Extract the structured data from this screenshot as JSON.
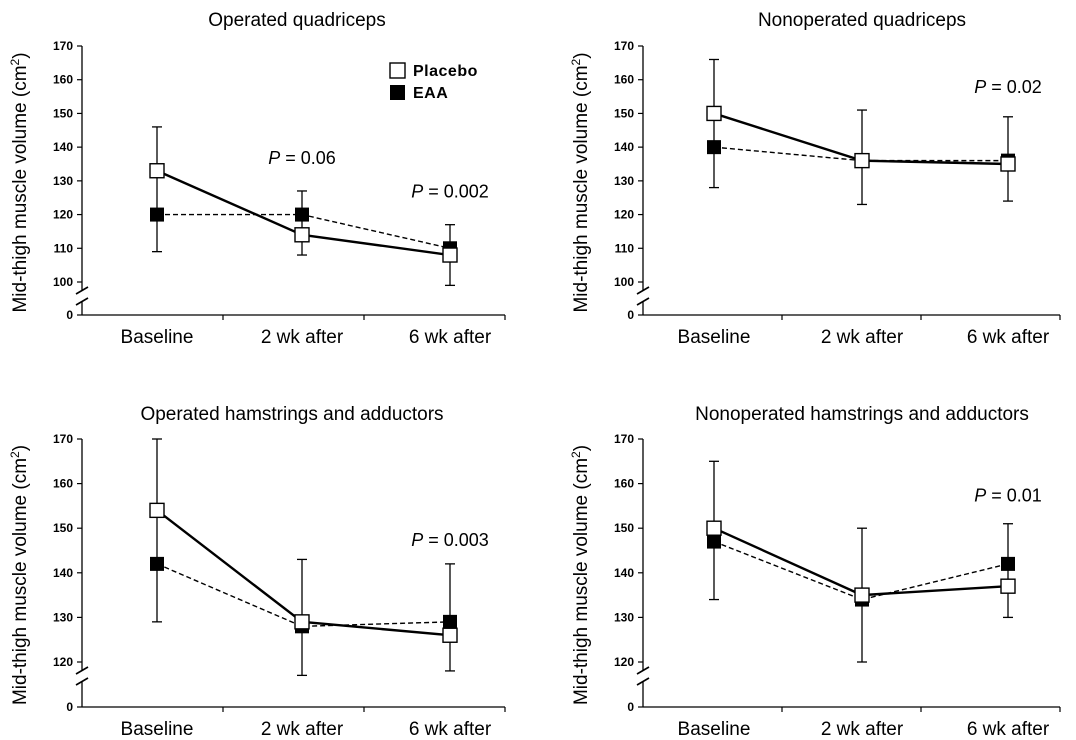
{
  "chart_data": [
    {
      "type": "line",
      "title": "Operated quadriceps",
      "ylabel": "Mid-thigh muscle volume (cm",
      "ylabel_sup": "2",
      "ylabel_close": ")",
      "categories": [
        "Baseline",
        "2 wk after",
        "6 wk after"
      ],
      "ylim": [
        100,
        170
      ],
      "yticks": [
        100,
        110,
        120,
        130,
        140,
        150,
        160,
        170
      ],
      "axis_break": true,
      "zero_label": "0",
      "series": [
        {
          "name": "Placebo",
          "values": [
            133,
            114,
            108
          ],
          "err_high": [
            146,
            127,
            117
          ],
          "err_low": [
            109,
            108,
            99
          ],
          "marker": "open-square",
          "line": "solid"
        },
        {
          "name": "EAA",
          "values": [
            120,
            120,
            110
          ],
          "err_high": [
            146,
            127,
            117
          ],
          "err_low": [
            109,
            108,
            99
          ],
          "marker": "filled-square",
          "line": "dashed"
        }
      ],
      "annotations": [
        {
          "category": "2 wk after",
          "y_level": 135,
          "prefix": "P",
          "text": " = 0.06"
        },
        {
          "category": "6 wk after",
          "y_level": 125,
          "prefix": "P",
          "text": " = 0.002"
        }
      ],
      "legend": {
        "placement": "top-right",
        "entries": [
          "Placebo",
          "EAA"
        ]
      }
    },
    {
      "type": "line",
      "title": "Nonoperated quadriceps",
      "ylabel": "Mid-thigh muscle volume (cm",
      "ylabel_sup": "2",
      "ylabel_close": ")",
      "categories": [
        "Baseline",
        "2 wk after",
        "6 wk after"
      ],
      "ylim": [
        100,
        170
      ],
      "yticks": [
        100,
        110,
        120,
        130,
        140,
        150,
        160,
        170
      ],
      "axis_break": true,
      "zero_label": "0",
      "series": [
        {
          "name": "Placebo",
          "values": [
            150,
            136,
            135
          ],
          "err_high": [
            166,
            151,
            149
          ],
          "err_low": [
            128,
            123,
            124
          ],
          "marker": "open-square",
          "line": "solid"
        },
        {
          "name": "EAA",
          "values": [
            140,
            136,
            136
          ],
          "err_high": [
            166,
            151,
            149
          ],
          "err_low": [
            128,
            123,
            124
          ],
          "marker": "filled-square",
          "line": "dashed"
        }
      ],
      "annotations": [
        {
          "category": "6 wk after",
          "y_level": 156,
          "prefix": "P",
          "text": " = 0.02"
        }
      ]
    },
    {
      "type": "line",
      "title": "Operated hamstrings and adductors",
      "ylabel": "Mid-thigh muscle volume (cm",
      "ylabel_sup": "2",
      "ylabel_close": ")",
      "categories": [
        "Baseline",
        "2 wk after",
        "6 wk after"
      ],
      "ylim": [
        120,
        170
      ],
      "yticks": [
        120,
        130,
        140,
        150,
        160,
        170
      ],
      "axis_break": true,
      "zero_label": "0",
      "series": [
        {
          "name": "Placebo",
          "values": [
            154,
            129,
            126
          ],
          "err_high": [
            170,
            143,
            142
          ],
          "err_low": [
            129,
            117,
            118
          ],
          "marker": "open-square",
          "line": "solid"
        },
        {
          "name": "EAA",
          "values": [
            142,
            128,
            129
          ],
          "err_high": [
            170,
            143,
            142
          ],
          "err_low": [
            129,
            117,
            118
          ],
          "marker": "filled-square",
          "line": "dashed"
        }
      ],
      "annotations": [
        {
          "category": "6 wk after",
          "y_level": 146,
          "prefix": "P",
          "text": " = 0.003"
        }
      ]
    },
    {
      "type": "line",
      "title": "Nonoperated hamstrings and adductors",
      "ylabel": "Mid-thigh muscle volume (cm",
      "ylabel_sup": "2",
      "ylabel_close": ")",
      "categories": [
        "Baseline",
        "2 wk after",
        "6 wk after"
      ],
      "ylim": [
        120,
        170
      ],
      "yticks": [
        120,
        130,
        140,
        150,
        160,
        170
      ],
      "axis_break": true,
      "zero_label": "0",
      "series": [
        {
          "name": "Placebo",
          "values": [
            150,
            135,
            137
          ],
          "err_high": [
            165,
            150,
            151
          ],
          "err_low": [
            134,
            120,
            130
          ],
          "marker": "open-square",
          "line": "solid"
        },
        {
          "name": "EAA",
          "values": [
            147,
            134,
            142
          ],
          "err_high": [
            165,
            150,
            151
          ],
          "err_low": [
            134,
            120,
            130
          ],
          "marker": "filled-square",
          "line": "dashed"
        }
      ],
      "annotations": [
        {
          "category": "6 wk after",
          "y_level": 156,
          "prefix": "P",
          "text": " = 0.01"
        }
      ]
    }
  ]
}
